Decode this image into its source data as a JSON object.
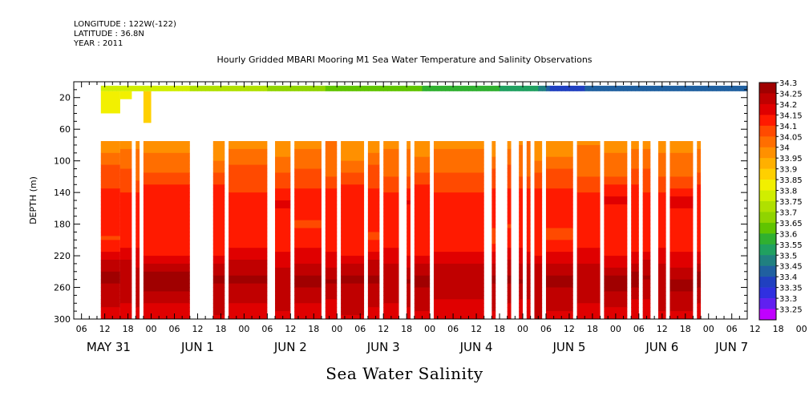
{
  "header": {
    "longitude": "LONGITUDE : 122W(-122)",
    "latitude": "LATITUDE : 36.8N",
    "year": "YEAR : 2011"
  },
  "title": "Hourly Gridded MBARI Mooring M1 Sea Water Temperature and Salinity Observations",
  "bottom_title": "Sea Water Salinity",
  "chart_data": {
    "type": "heatmap",
    "title": "Hourly Gridded MBARI Mooring M1 Sea Water Temperature and Salinity Observations",
    "variable": "Sea Water Salinity",
    "ylabel": "DEPTH (m)",
    "yreversed": true,
    "ylim": [
      0,
      300
    ],
    "yticks": [
      20,
      60,
      100,
      140,
      180,
      220,
      260,
      300
    ],
    "xlim_hours": [
      -20,
      154
    ],
    "x_hour_ticks": [
      "06",
      "12",
      "18",
      "00",
      "06",
      "12",
      "18",
      "00",
      "06",
      "12",
      "18",
      "00",
      "06",
      "12",
      "18",
      "00",
      "06",
      "12",
      "18",
      "00",
      "06",
      "12",
      "18",
      "00",
      "06",
      "12",
      "18",
      "00",
      "06",
      "12",
      "18",
      "00"
    ],
    "x_date_labels": [
      "MAY 31",
      "JUN  1",
      "JUN  2",
      "JUN  3",
      "JUN  4",
      "JUN  5",
      "JUN  6",
      "JUN  7"
    ],
    "colorbar_levels": [
      "34.3",
      "34.25",
      "34.2",
      "34.15",
      "34.1",
      "34.05",
      "34",
      "33.95",
      "33.9",
      "33.85",
      "33.8",
      "33.75",
      "33.7",
      "33.65",
      "33.6",
      "33.55",
      "33.5",
      "33.45",
      "33.4",
      "33.35",
      "33.3",
      "33.25"
    ],
    "colorbar_colors": [
      "#a00000",
      "#c00000",
      "#e00000",
      "#ff1a00",
      "#ff4a00",
      "#ff6e00",
      "#ff9000",
      "#ffb000",
      "#ffd000",
      "#f2f000",
      "#d0ee00",
      "#b0e000",
      "#90d400",
      "#60c400",
      "#30b030",
      "#20a060",
      "#208080",
      "#2060a0",
      "#2040c0",
      "#3030e0",
      "#6020f0",
      "#c000ff"
    ],
    "surface_band": {
      "depth_range": [
        5,
        12
      ],
      "profile": [
        [
          -20,
          33.78
        ],
        [
          0,
          33.78
        ],
        [
          10,
          33.75
        ],
        [
          20,
          33.72
        ],
        [
          30,
          33.7
        ],
        [
          40,
          33.66
        ],
        [
          50,
          33.64
        ],
        [
          60,
          33.62
        ],
        [
          70,
          33.6
        ],
        [
          80,
          33.55
        ],
        [
          90,
          33.55
        ],
        [
          100,
          33.52
        ],
        [
          104,
          33.35
        ],
        [
          112,
          33.4
        ],
        [
          120,
          33.42
        ],
        [
          130,
          33.42
        ],
        [
          140,
          33.42
        ],
        [
          154,
          33.42
        ]
      ]
    },
    "data_columns_hours": [
      [
        -13,
        -8
      ],
      [
        -8,
        -5
      ],
      [
        -4,
        -3
      ],
      [
        -2,
        10
      ],
      [
        16,
        19
      ],
      [
        20,
        30
      ],
      [
        32,
        36
      ],
      [
        37,
        44
      ],
      [
        45,
        48
      ],
      [
        49,
        55
      ],
      [
        56,
        59
      ],
      [
        60,
        64
      ],
      [
        66,
        67
      ],
      [
        68,
        72
      ],
      [
        73,
        86
      ],
      [
        88,
        89
      ],
      [
        92,
        93
      ],
      [
        95,
        96
      ],
      [
        97,
        98
      ],
      [
        99,
        101
      ],
      [
        102,
        109
      ],
      [
        110,
        116
      ],
      [
        117,
        123
      ],
      [
        124,
        126
      ],
      [
        127,
        129
      ],
      [
        131,
        133
      ],
      [
        134,
        140
      ],
      [
        141,
        142
      ]
    ],
    "near_surface_patches": [
      {
        "hours": [
          -13,
          -8
        ],
        "depth": [
          12,
          40
        ],
        "value": 33.8
      },
      {
        "hours": [
          -8,
          -5
        ],
        "depth": [
          12,
          22
        ],
        "value": 33.8
      },
      {
        "hours": [
          -2,
          0
        ],
        "depth": [
          12,
          52
        ],
        "value": 33.86
      }
    ],
    "deep_profile": [
      [
        75,
        33.98
      ],
      [
        95,
        34.01
      ],
      [
        115,
        34.05
      ],
      [
        135,
        34.1
      ],
      [
        150,
        34.14
      ],
      [
        170,
        34.12
      ],
      [
        200,
        34.11
      ],
      [
        215,
        34.15
      ],
      [
        230,
        34.2
      ],
      [
        250,
        34.26
      ],
      [
        270,
        34.22
      ],
      [
        300,
        34.18
      ]
    ]
  }
}
